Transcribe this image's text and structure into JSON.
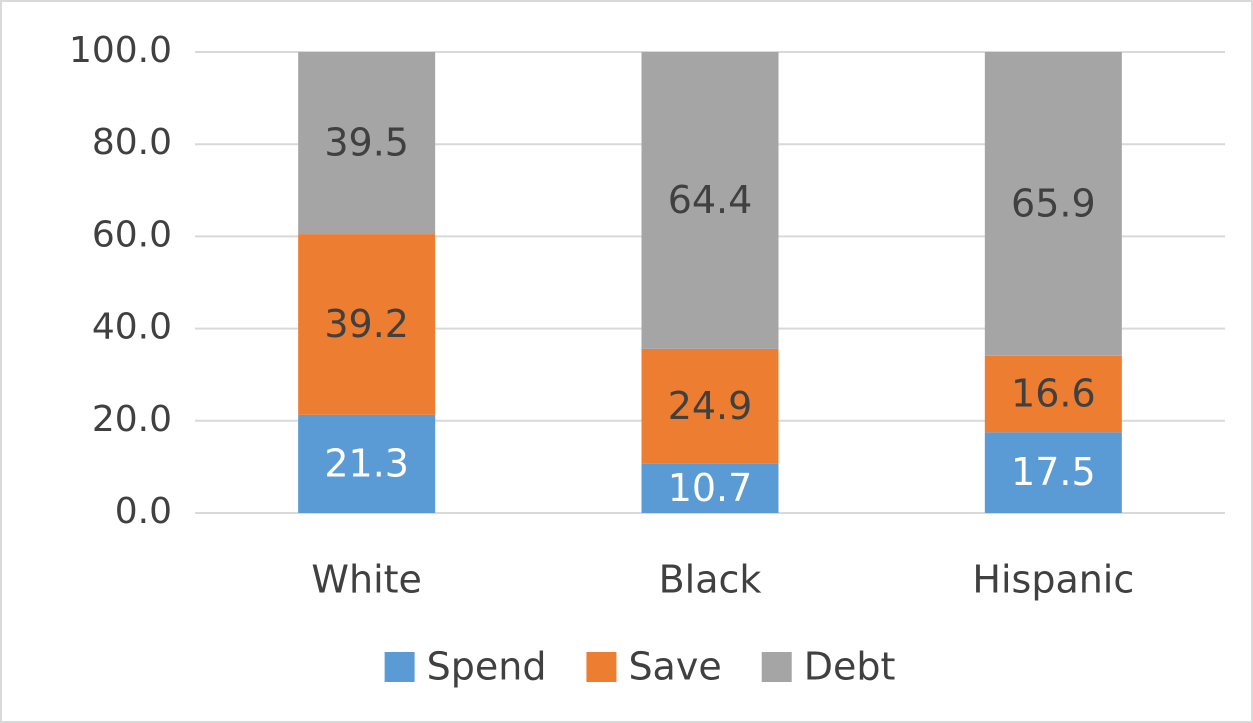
{
  "chart_data": {
    "type": "stacked_bar",
    "categories": [
      "White",
      "Black",
      "Hispanic"
    ],
    "series": [
      {
        "name": "Spend",
        "color": "#5b9bd5",
        "values": [
          21.3,
          10.7,
          17.5
        ]
      },
      {
        "name": "Save",
        "color": "#ed7d31",
        "values": [
          39.2,
          24.9,
          16.6
        ]
      },
      {
        "name": "Debt",
        "color": "#a5a5a5",
        "values": [
          39.5,
          64.4,
          65.9
        ]
      }
    ],
    "ylim": [
      0,
      100
    ],
    "yticks": [
      {
        "value": 0,
        "label": "0.0"
      },
      {
        "value": 20,
        "label": "20.0"
      },
      {
        "value": 40,
        "label": "40.0"
      },
      {
        "value": 60,
        "label": "60.0"
      },
      {
        "value": 80,
        "label": "80.0"
      },
      {
        "value": 100,
        "label": "100.0"
      }
    ],
    "grid": true,
    "legend": "bottom"
  }
}
